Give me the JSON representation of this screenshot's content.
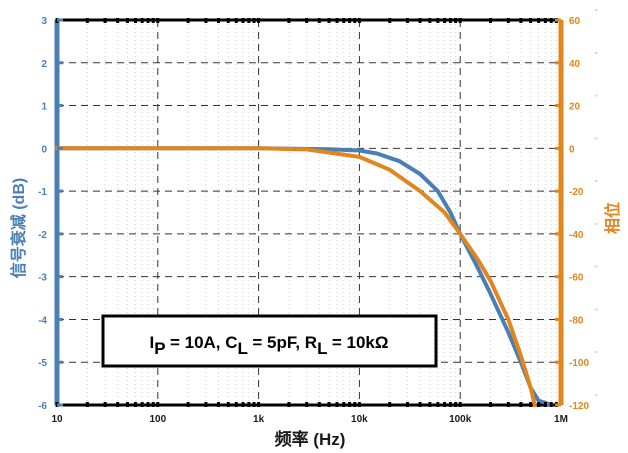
{
  "chart_data": {
    "type": "line",
    "title": "",
    "xlabel": "频率 (Hz)",
    "ylabel_left": "信号衰减 (dB)",
    "ylabel_right": "相位",
    "x_scale": "log",
    "xlim": [
      10,
      1000000
    ],
    "ylim_left": [
      -6,
      3
    ],
    "ylim_right": [
      -120,
      60
    ],
    "x_ticks": [
      {
        "value": 10,
        "label": "10"
      },
      {
        "value": 100,
        "label": "100"
      },
      {
        "value": 1000,
        "label": "1k"
      },
      {
        "value": 10000,
        "label": "10k"
      },
      {
        "value": 100000,
        "label": "100k"
      },
      {
        "value": 1000000,
        "label": "1M"
      }
    ],
    "y_left_ticks": [
      {
        "value": 3,
        "label": "3"
      },
      {
        "value": 2,
        "label": "2"
      },
      {
        "value": 1,
        "label": "1"
      },
      {
        "value": 0,
        "label": "0"
      },
      {
        "value": -1,
        "label": "-1"
      },
      {
        "value": -2,
        "label": "-2"
      },
      {
        "value": -3,
        "label": "-3"
      },
      {
        "value": -4,
        "label": "-4"
      },
      {
        "value": -5,
        "label": "-5"
      },
      {
        "value": -6,
        "label": "-6"
      }
    ],
    "y_right_ticks": [
      {
        "value": 60,
        "label": "60"
      },
      {
        "value": 40,
        "label": "40"
      },
      {
        "value": 20,
        "label": "20"
      },
      {
        "value": 0,
        "label": "0"
      },
      {
        "value": -20,
        "label": "-20"
      },
      {
        "value": -40,
        "label": "-40"
      },
      {
        "value": -60,
        "label": "-60"
      },
      {
        "value": -80,
        "label": "-80"
      },
      {
        "value": -100,
        "label": "-100"
      },
      {
        "value": -120,
        "label": "-120"
      }
    ],
    "degree_symbol": "°",
    "grid": true,
    "annotation": {
      "parts": [
        {
          "text": "I",
          "sub": false
        },
        {
          "text": "P",
          "sub": true
        },
        {
          "text": " = 10A, C",
          "sub": false
        },
        {
          "text": "L",
          "sub": true
        },
        {
          "text": " = 5pF, R",
          "sub": false
        },
        {
          "text": "L",
          "sub": true
        },
        {
          "text": " = 10kΩ",
          "sub": false
        }
      ]
    },
    "series": [
      {
        "axis": "left",
        "color": "#4a7fb5",
        "x": [
          10,
          100,
          1000,
          5000,
          10000,
          15000,
          25000,
          40000,
          60000,
          80000,
          100000,
          150000,
          200000,
          300000,
          400000,
          500000,
          600000,
          700000,
          800000
        ],
        "y": [
          0,
          0,
          0,
          -0.02,
          -0.05,
          -0.12,
          -0.3,
          -0.6,
          -1.0,
          -1.5,
          -2.0,
          -2.8,
          -3.4,
          -4.3,
          -5.0,
          -5.6,
          -5.9,
          -5.95,
          -6.0
        ]
      },
      {
        "axis": "right",
        "color": "#e2851c",
        "x": [
          10,
          100,
          1000,
          3000,
          10000,
          20000,
          40000,
          70000,
          100000,
          150000,
          200000,
          300000,
          400000,
          500000,
          550000
        ],
        "y": [
          0,
          0,
          0,
          -0.5,
          -4,
          -10,
          -20,
          -30,
          -40,
          -52,
          -62,
          -80,
          -97,
          -112,
          -120
        ]
      }
    ]
  }
}
